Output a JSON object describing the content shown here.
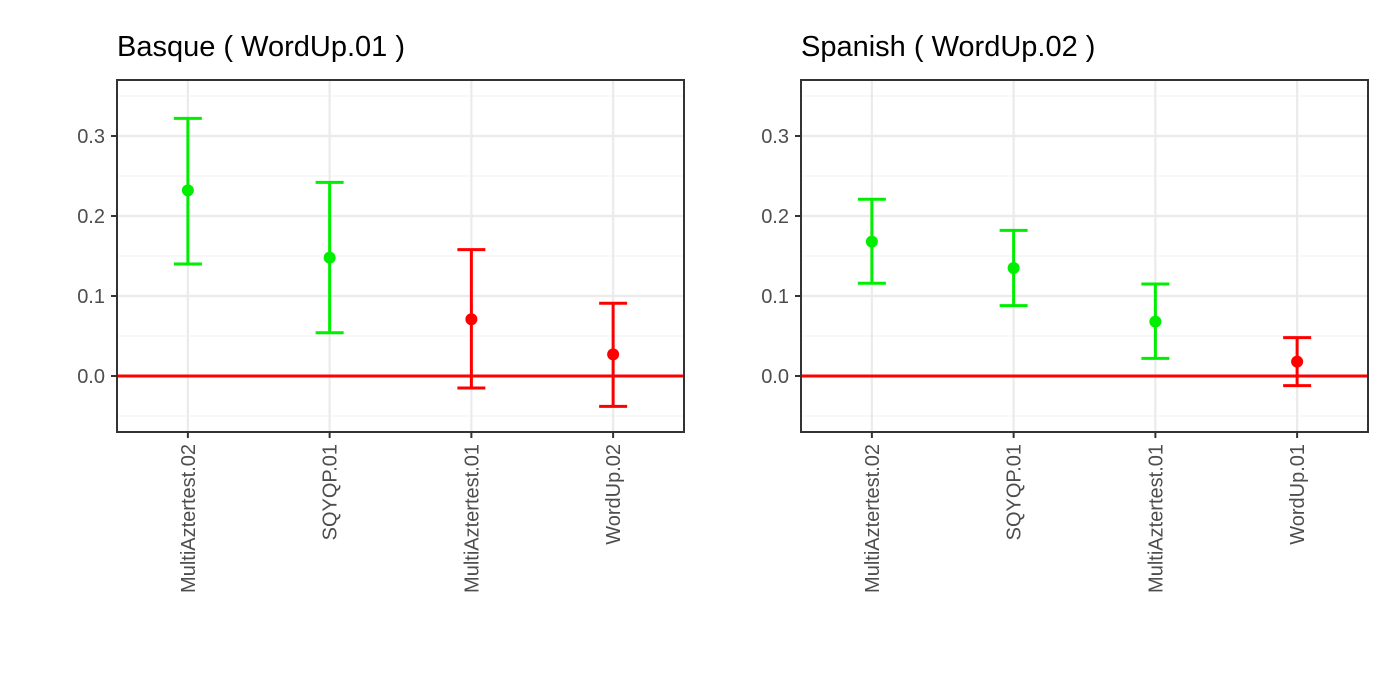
{
  "chart_data": [
    {
      "type": "scatter",
      "subtype": "point-with-error-bars",
      "title": "Basque  ( WordUp.01 )",
      "xlabel": "",
      "ylabel": "",
      "categories": [
        "MultiAztertest.02",
        "SQYQP.01",
        "MultiAztertest.01",
        "WordUp.02"
      ],
      "values": [
        0.232,
        0.148,
        0.071,
        0.027
      ],
      "lower": [
        0.14,
        0.054,
        -0.015,
        -0.038
      ],
      "upper": [
        0.322,
        0.242,
        0.158,
        0.091
      ],
      "point_colors": [
        "#00ee00",
        "#00ee00",
        "#ff0000",
        "#ff0000"
      ],
      "ylim": [
        -0.07,
        0.37
      ],
      "yticks": [
        0.0,
        0.1,
        0.2,
        0.3
      ],
      "ytick_labels": [
        "0.0",
        "0.1",
        "0.2",
        "0.3"
      ],
      "reference_line": {
        "y": 0,
        "color": "#ff0000"
      },
      "grid": true,
      "legend": "none"
    },
    {
      "type": "scatter",
      "subtype": "point-with-error-bars",
      "title": "Spanish  ( WordUp.02 )",
      "xlabel": "",
      "ylabel": "",
      "categories": [
        "MultiAztertest.02",
        "SQYQP.01",
        "MultiAztertest.01",
        "WordUp.01"
      ],
      "values": [
        0.168,
        0.135,
        0.068,
        0.018
      ],
      "lower": [
        0.116,
        0.088,
        0.022,
        -0.012
      ],
      "upper": [
        0.221,
        0.182,
        0.115,
        0.048
      ],
      "point_colors": [
        "#00ee00",
        "#00ee00",
        "#00ee00",
        "#ff0000"
      ],
      "ylim": [
        -0.07,
        0.37
      ],
      "yticks": [
        0.0,
        0.1,
        0.2,
        0.3
      ],
      "ytick_labels": [
        "0.0",
        "0.1",
        "0.2",
        "0.3"
      ],
      "reference_line": {
        "y": 0,
        "color": "#ff0000"
      },
      "grid": true,
      "legend": "none"
    }
  ]
}
